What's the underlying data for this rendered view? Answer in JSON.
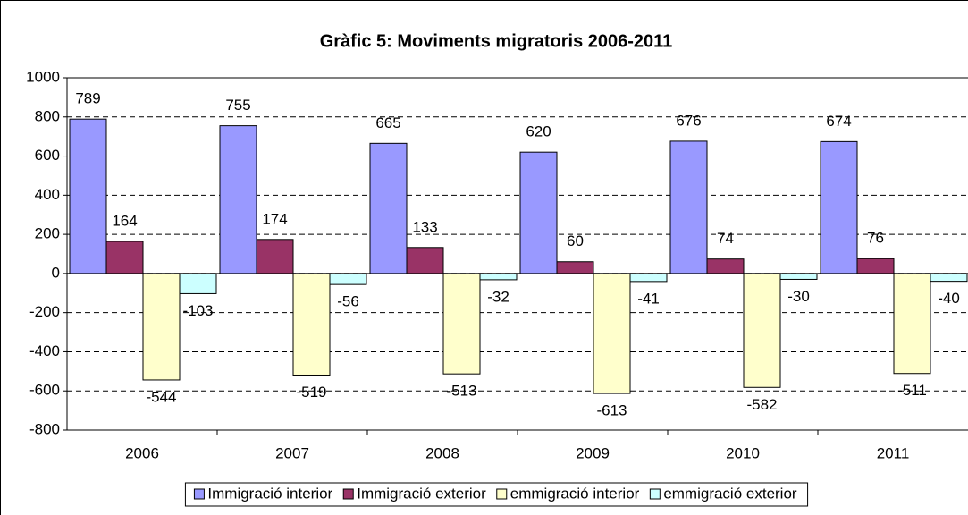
{
  "chart_data": {
    "type": "bar",
    "title": "Gràfic 5: Moviments migratoris 2006-2011",
    "categories": [
      "2006",
      "2007",
      "2008",
      "2009",
      "2010",
      "2011"
    ],
    "series": [
      {
        "name": "Immigració interior",
        "color": "#9999ff",
        "values": [
          789,
          755,
          665,
          620,
          676,
          674
        ]
      },
      {
        "name": "Immigració exterior",
        "color": "#993366",
        "values": [
          164,
          174,
          133,
          60,
          74,
          76
        ]
      },
      {
        "name": "emmigració interior",
        "color": "#ffffcc",
        "values": [
          -544,
          -519,
          -513,
          -613,
          -582,
          -511
        ]
      },
      {
        "name": "emmigració exterior",
        "color": "#ccffff",
        "values": [
          -103,
          -56,
          -32,
          -41,
          -30,
          -40
        ]
      }
    ],
    "ylim": [
      -800,
      1000
    ],
    "yticks": [
      -800,
      -600,
      -400,
      -200,
      0,
      200,
      400,
      600,
      800,
      1000
    ],
    "grid": true,
    "legend": "bottom"
  }
}
